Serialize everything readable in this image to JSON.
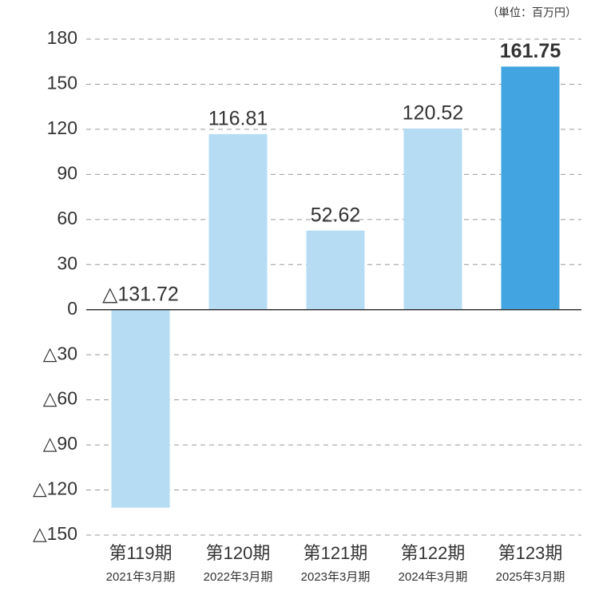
{
  "chart_data": {
    "type": "bar",
    "unit_note": "（単位：百万円）",
    "categories": [
      "第119期",
      "第120期",
      "第121期",
      "第122期",
      "第123期"
    ],
    "subcategories": [
      "2021年3月期",
      "2022年3月期",
      "2023年3月期",
      "2024年3月期",
      "2025年3月期"
    ],
    "values": [
      -131.72,
      116.81,
      52.62,
      120.52,
      161.75
    ],
    "value_labels": [
      "△131.72",
      "116.81",
      "52.62",
      "120.52",
      "161.75"
    ],
    "colors": [
      "#b6dcf4",
      "#b6dcf4",
      "#b6dcf4",
      "#b6dcf4",
      "#42a5e1"
    ],
    "ylim": [
      -150,
      180
    ],
    "yticks": [
      180,
      150,
      120,
      90,
      60,
      30,
      0,
      {
        "value": -30,
        "label": "△30"
      },
      {
        "value": -60,
        "label": "△60"
      },
      {
        "value": -90,
        "label": "△90"
      },
      {
        "value": -120,
        "label": "△120"
      },
      {
        "value": -150,
        "label": "△150"
      }
    ],
    "grid": true
  }
}
